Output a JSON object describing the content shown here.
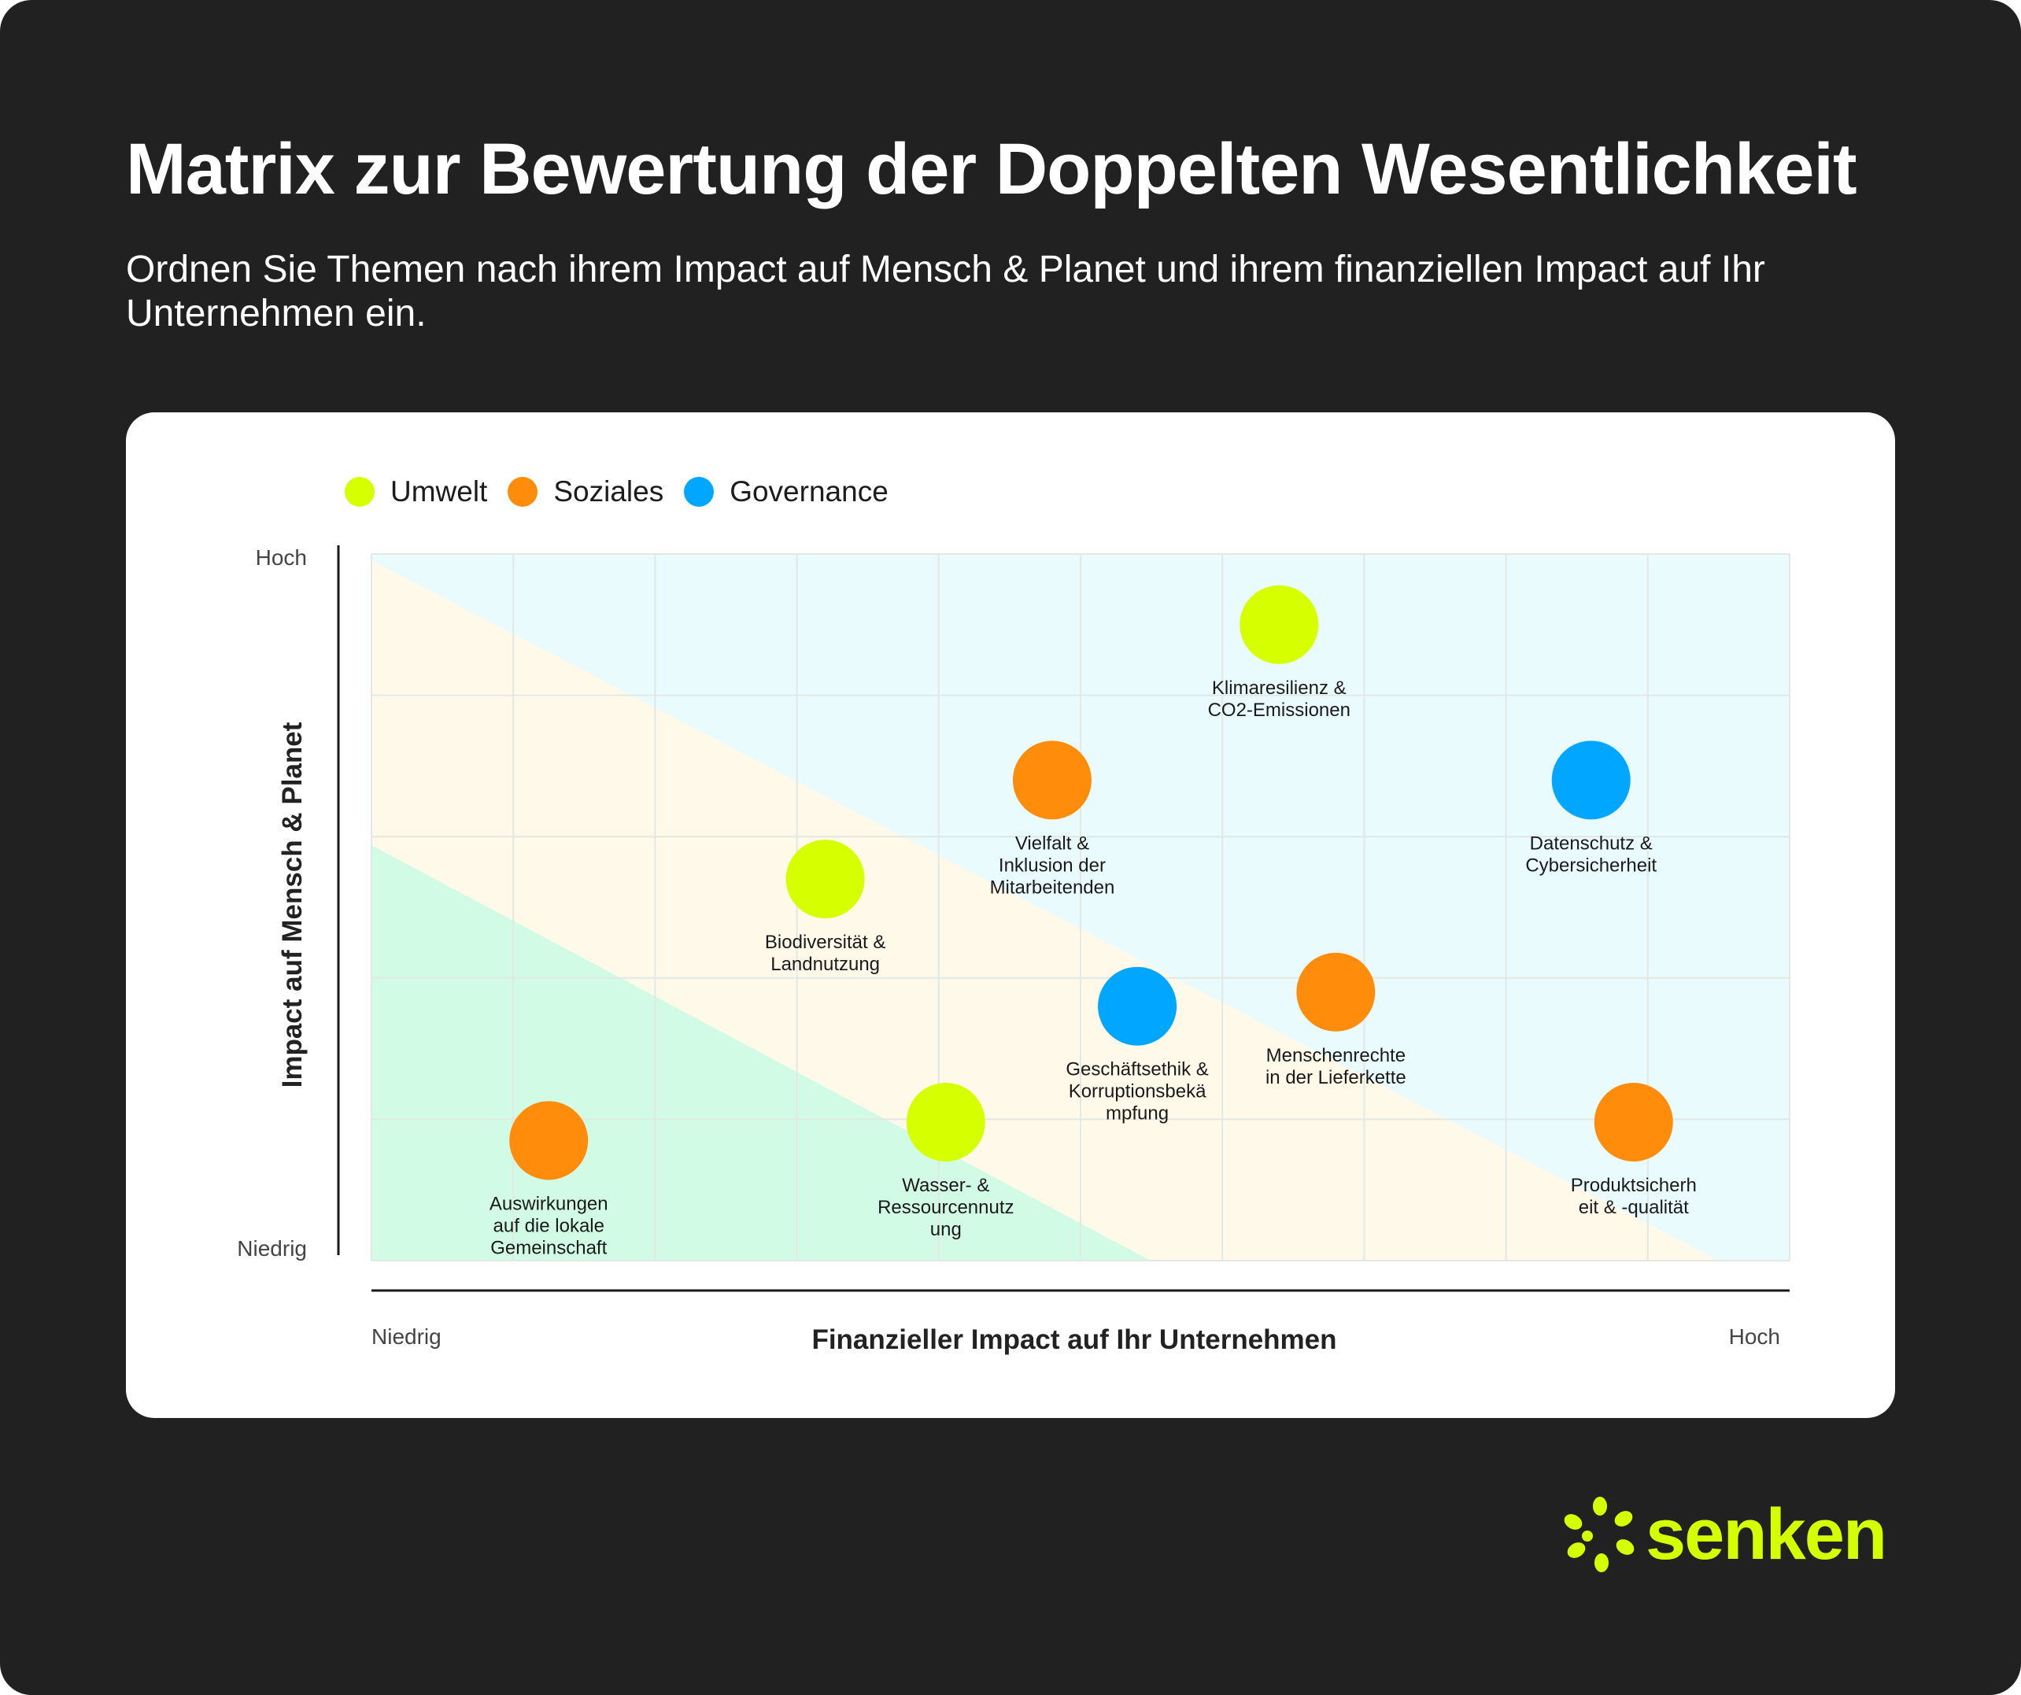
{
  "title": "Matrix zur Bewertung der Doppelten Wesentlichkeit",
  "subtitle": "Ordnen Sie Themen nach ihrem Impact auf Mensch & Planet und ihrem finanziellen Impact auf Ihr Unternehmen ein.",
  "logo_text": "senken",
  "colors": {
    "background": "#212121",
    "umwelt": "#d6ff00",
    "soziales": "#ff8c0a",
    "governance": "#00a6ff",
    "zone_high": "#eafbfd",
    "zone_mid": "#fff9ea",
    "zone_low": "#d2fbe5",
    "grid": "#e2e8e4",
    "logo": "#d4ff00"
  },
  "chart_data": {
    "type": "scatter",
    "title": "",
    "xlabel": "Finanzieller Impact auf Ihr Unternehmen",
    "ylabel": "Impact auf Mensch & Planet",
    "x_tick_labels": [
      "Niedrig",
      "Hoch"
    ],
    "y_tick_labels": [
      "Niedrig",
      "Hoch"
    ],
    "xlim": [
      0,
      10
    ],
    "ylim": [
      0,
      5
    ],
    "grid": true,
    "legend_position": "top-left",
    "categories": [
      {
        "key": "umwelt",
        "name": "Umwelt",
        "color": "#d6ff00"
      },
      {
        "key": "soziales",
        "name": "Soziales",
        "color": "#ff8c0a"
      },
      {
        "key": "governance",
        "name": "Governance",
        "color": "#00a6ff"
      }
    ],
    "points": [
      {
        "category": "umwelt",
        "x": 6.4,
        "y": 4.5,
        "label": [
          "Klimaresilienz &",
          "CO2-Emissionen"
        ]
      },
      {
        "category": "soziales",
        "x": 4.8,
        "y": 3.4,
        "label": [
          "Vielfalt &",
          "Inklusion der",
          "Mitarbeitenden"
        ]
      },
      {
        "category": "governance",
        "x": 8.6,
        "y": 3.4,
        "label": [
          "Datenschutz &",
          "Cybersicherheit"
        ]
      },
      {
        "category": "umwelt",
        "x": 3.2,
        "y": 2.7,
        "label": [
          "Biodiversität &",
          "Landnutzung"
        ]
      },
      {
        "category": "governance",
        "x": 5.4,
        "y": 1.8,
        "label": [
          "Geschäftsethik &",
          "Korruptionsbekä",
          "mpfung"
        ]
      },
      {
        "category": "soziales",
        "x": 6.8,
        "y": 1.9,
        "label": [
          "Menschenrechte",
          "in der Lieferkette"
        ]
      },
      {
        "category": "soziales",
        "x": 1.25,
        "y": 0.85,
        "label": [
          "Auswirkungen",
          "auf die lokale",
          "Gemeinschaft"
        ]
      },
      {
        "category": "umwelt",
        "x": 4.05,
        "y": 0.98,
        "label": [
          "Wasser- &",
          "Ressourcennutz",
          "ung"
        ]
      },
      {
        "category": "soziales",
        "x": 8.9,
        "y": 0.98,
        "label": [
          "Produktsicherh",
          "eit & -qualität"
        ]
      }
    ]
  }
}
